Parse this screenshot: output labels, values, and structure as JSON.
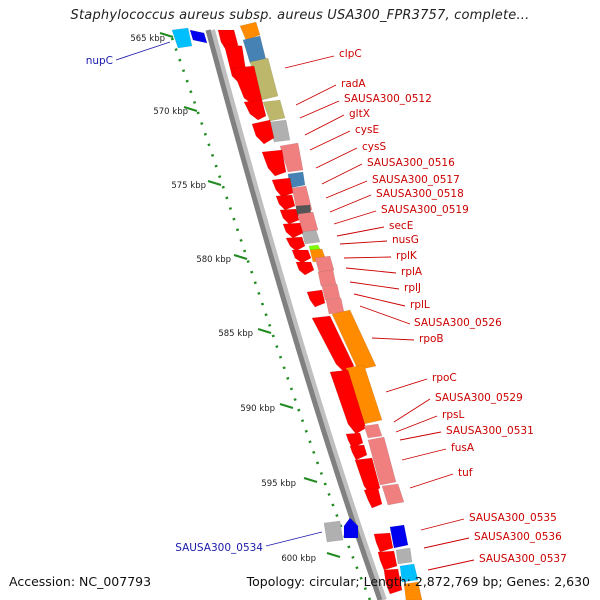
{
  "title": "Staphylococcus aureus subsp. aureus USA300_FPR3757, complete...",
  "footer": {
    "accession": "Accession: NC_007793",
    "summary": "Topology: circular; Length: 2,872,769 bp; Genes: 2,630"
  },
  "colors": {
    "gene_red": "#ff0000",
    "gene_pink": "#f08080",
    "gene_orange": "#ff8c00",
    "gene_olive": "#bdb76b",
    "gene_steel": "#4682b4",
    "gene_gray": "#b0b0b0",
    "gene_blue": "#0000ee",
    "gene_cyan": "#00bfff",
    "gene_green": "#7cfc00",
    "backbone": "#808080",
    "tick_green": "#228b22",
    "label_red": "#cc0000",
    "label_blue": "#1a1aaa"
  },
  "scale_labels": [
    "565 kbp",
    "570 kbp",
    "575 kbp",
    "580 kbp",
    "585 kbp",
    "590 kbp",
    "595 kbp",
    "600 kbp"
  ],
  "genes_right": [
    "clpC",
    "radA",
    "SAUSA300_0512",
    "gltX",
    "cysE",
    "cysS",
    "SAUSA300_0516",
    "SAUSA300_0517",
    "SAUSA300_0518",
    "SAUSA300_0519",
    "secE",
    "nusG",
    "rplK",
    "rplA",
    "rplJ",
    "rplL",
    "SAUSA300_0526",
    "rpoB",
    "rpoC",
    "SAUSA300_0529",
    "rpsL",
    "SAUSA300_0531",
    "fusA",
    "tuf",
    "SAUSA300_0535",
    "SAUSA300_0536",
    "SAUSA300_0537"
  ],
  "genes_left": [
    "nupC",
    "SAUSA300_0534"
  ]
}
